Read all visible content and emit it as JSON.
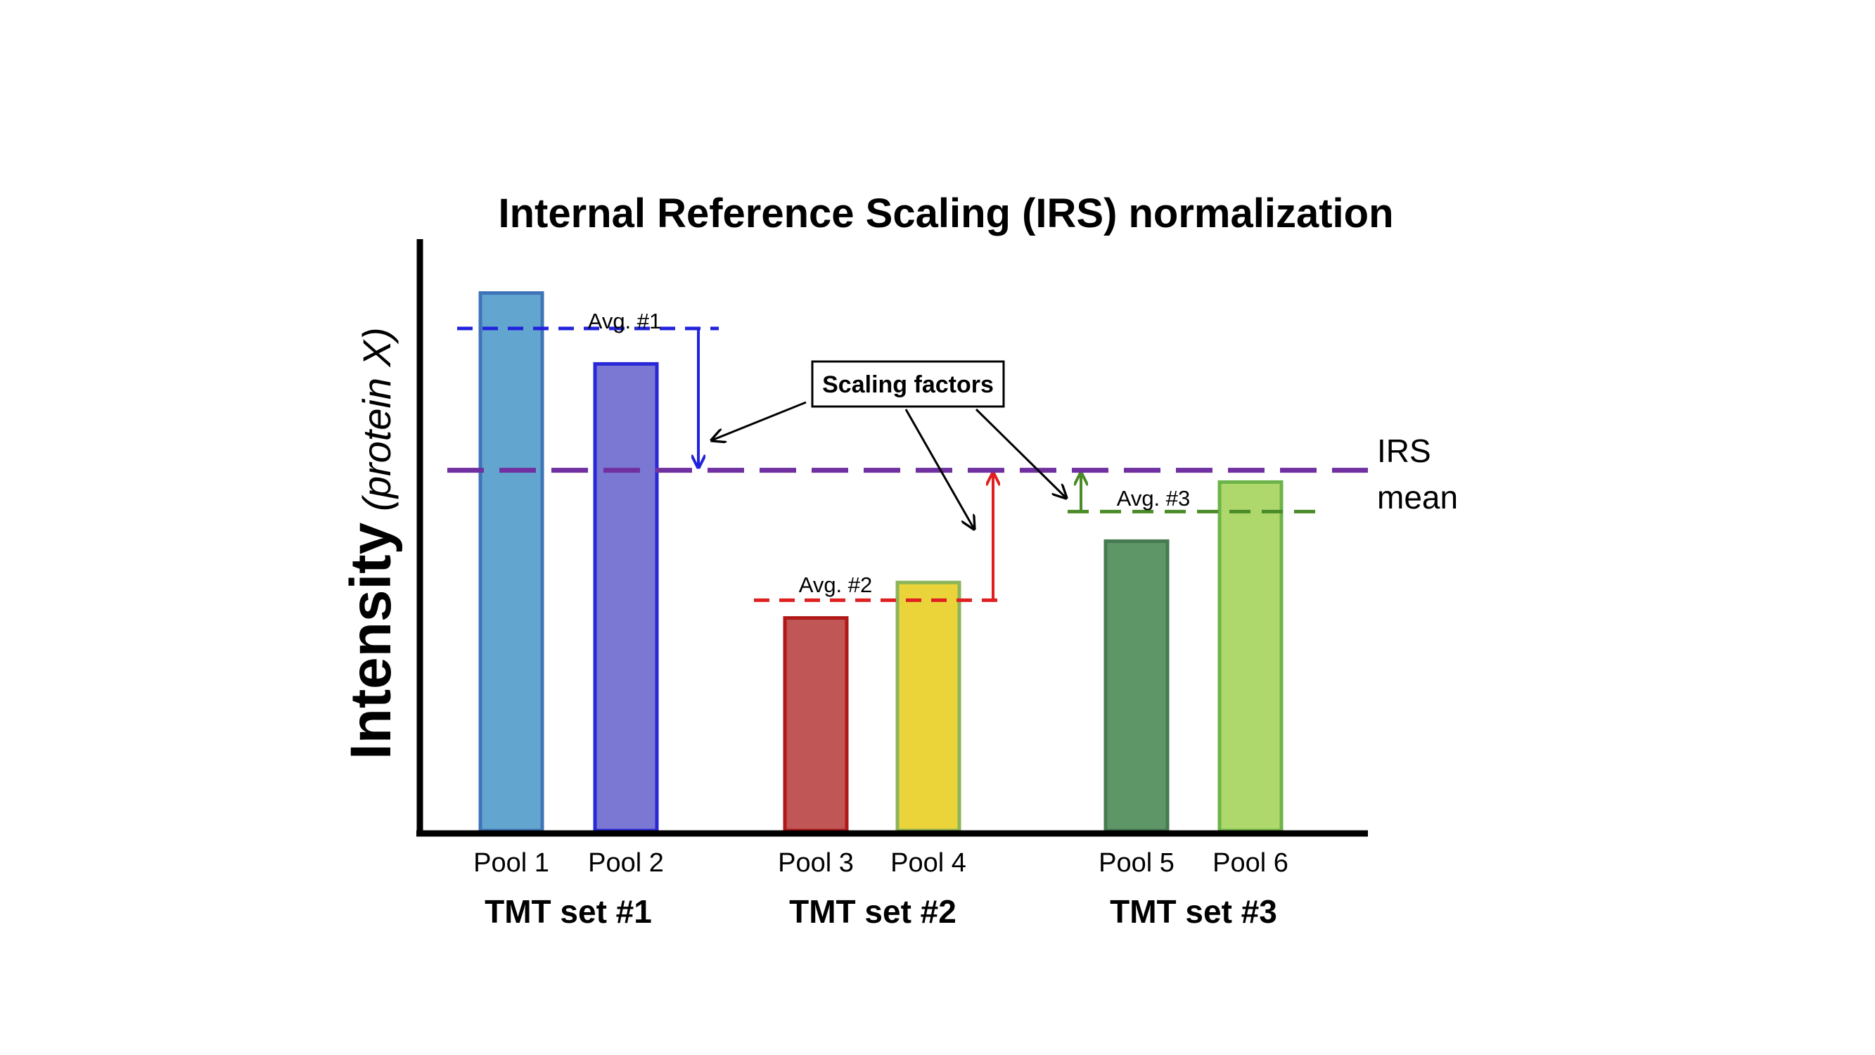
{
  "title": "Internal Reference Scaling (IRS) normalization",
  "y_axis": {
    "label": "Intensity",
    "label_qualifier": "(protein X)"
  },
  "irs_label": {
    "line1": "IRS",
    "line2": "mean"
  },
  "callout": "Scaling factors",
  "colors": {
    "irs_line": "#7030a0",
    "avg1": "#2222dd",
    "avg2": "#e02020",
    "avg3": "#4a8a28",
    "callout_arrow": "#000000"
  },
  "chart_data": {
    "type": "bar",
    "title": "Internal Reference Scaling (IRS) normalization",
    "ylabel": "Intensity (protein X)",
    "xlabel": "",
    "ylim": [
      0,
      100
    ],
    "categories": [
      "Pool 1",
      "Pool 2",
      "Pool 3",
      "Pool 4",
      "Pool 5",
      "Pool 6"
    ],
    "values": [
      91,
      79,
      36,
      42,
      49,
      59
    ],
    "bar_colors": [
      {
        "fill": "#62a6d0",
        "stroke": "#3f74b8"
      },
      {
        "fill": "#7b78d4",
        "stroke": "#2828d8"
      },
      {
        "fill": "#c05656",
        "stroke": "#b01818"
      },
      {
        "fill": "#ead43a",
        "stroke": "#8cb45a"
      },
      {
        "fill": "#5f9668",
        "stroke": "#467a50"
      },
      {
        "fill": "#afd86c",
        "stroke": "#6cb44a"
      }
    ],
    "groups": [
      {
        "label": "TMT set #1",
        "members": [
          "Pool 1",
          "Pool 2"
        ],
        "avg_label": "Avg. #1",
        "avg_value": 85,
        "color": "#2222dd"
      },
      {
        "label": "TMT set #2",
        "members": [
          "Pool 3",
          "Pool 4"
        ],
        "avg_label": "Avg. #2",
        "avg_value": 39,
        "color": "#e02020"
      },
      {
        "label": "TMT set #3",
        "members": [
          "Pool 5",
          "Pool 6"
        ],
        "avg_label": "Avg. #3",
        "avg_value": 54,
        "color": "#4a8a28"
      }
    ],
    "irs_mean": 61
  }
}
